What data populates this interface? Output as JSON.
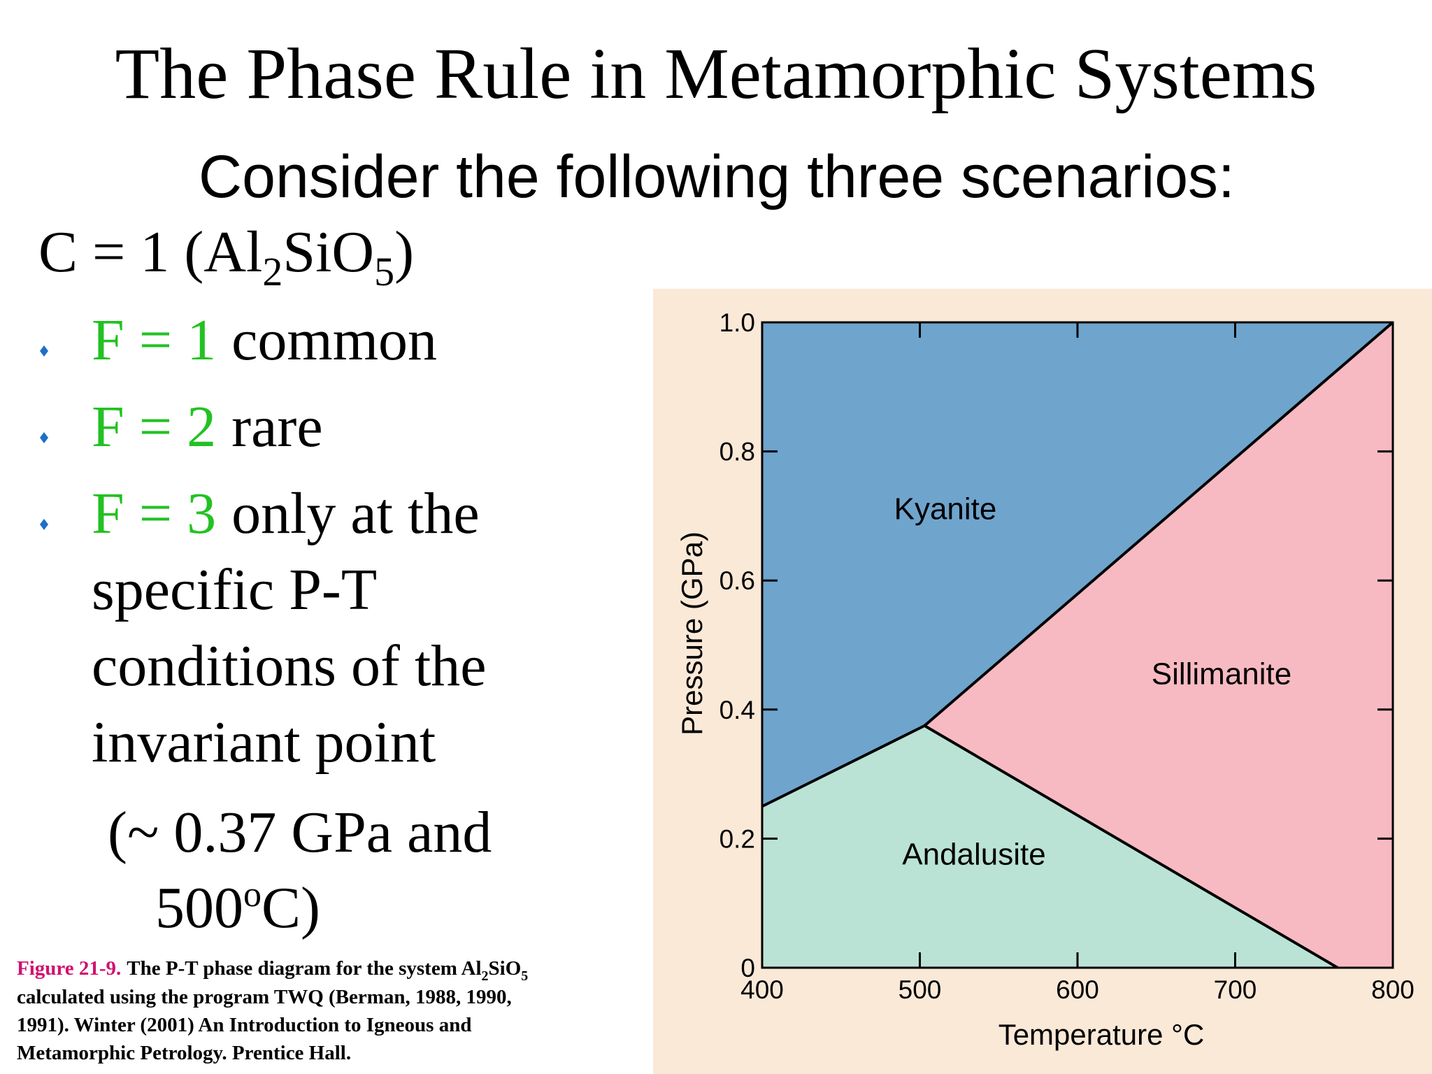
{
  "title": "The Phase Rule in Metamorphic Systems",
  "subtitle": "Consider the following three scenarios:",
  "components": {
    "prefix": "C = 1 (Al",
    "sub1": "2",
    "mid": "SiO",
    "sub2": "5",
    "suffix": ")"
  },
  "bullets": [
    {
      "highlight": "F = 1",
      "lines": [
        "common"
      ]
    },
    {
      "highlight": "F = 2",
      "lines": [
        "rare"
      ]
    },
    {
      "highlight": "F = 3",
      "lines": [
        "only at the",
        "specific P-T",
        "conditions of the",
        "invariant point"
      ]
    }
  ],
  "invariant_note": {
    "line1": "(~ 0.37 GPa and",
    "pre": "500",
    "sup": "o",
    "post": "C)"
  },
  "caption": {
    "label": "Figure 21-9.",
    "text1": "The P-T phase diagram for the system Al",
    "sub1": "2",
    "text2": "SiO",
    "sub2": "5",
    "lines": [
      "calculated using the program TWQ (Berman, 1988, 1990,",
      "1991). Winter (2001) An Introduction to Igneous and",
      "Metamorphic Petrology. Prentice Hall."
    ]
  },
  "chart_data": {
    "type": "phase-diagram",
    "x_label": "Temperature °C",
    "y_label": "Pressure (GPa)",
    "xlim": [
      400,
      800
    ],
    "ylim": [
      0,
      1
    ],
    "xticks": [
      400,
      500,
      600,
      700,
      800
    ],
    "yticks": [
      0,
      0.2,
      0.4,
      0.6,
      0.8,
      {
        "value": 1,
        "label": "1.0"
      }
    ],
    "background": "#fbe9d8",
    "regions": [
      {
        "name": "Kyanite",
        "color": "#6fa4cd",
        "x": [
          400,
          503,
          800,
          400
        ],
        "y": [
          0.25,
          0.375,
          1,
          1
        ]
      },
      {
        "name": "Sillimanite",
        "color": "#f8bac2",
        "x": [
          503,
          800,
          800,
          765
        ],
        "y": [
          0.375,
          1,
          0,
          0
        ]
      },
      {
        "name": "Andalusite",
        "color": "#bae3d5",
        "x": [
          400,
          400,
          503,
          765
        ],
        "y": [
          0,
          0.25,
          0.375,
          0
        ]
      }
    ],
    "series": [
      {
        "color": "#000000",
        "x": [
          400,
          503
        ],
        "values": [
          0.25,
          0.375
        ]
      },
      {
        "color": "#000000",
        "x": [
          503,
          765
        ],
        "values": [
          0.375,
          0
        ]
      },
      {
        "color": "#000000",
        "x": [
          503,
          800
        ],
        "values": [
          0.375,
          1
        ]
      }
    ]
  }
}
